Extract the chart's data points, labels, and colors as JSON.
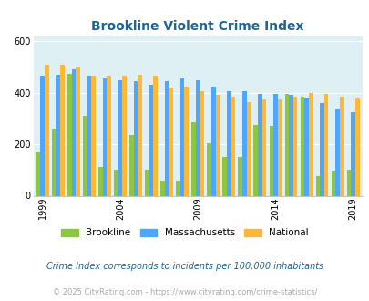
{
  "title": "Brookline Violent Crime Index",
  "years": [
    1999,
    2000,
    2001,
    2002,
    2003,
    2004,
    2005,
    2006,
    2007,
    2008,
    2009,
    2010,
    2011,
    2012,
    2013,
    2014,
    2015,
    2016,
    2017,
    2018,
    2019
  ],
  "brookline": [
    170,
    260,
    475,
    310,
    110,
    100,
    235,
    100,
    60,
    60,
    285,
    205,
    150,
    150,
    275,
    270,
    395,
    385,
    75,
    95,
    100
  ],
  "massachusetts": [
    465,
    470,
    490,
    465,
    455,
    450,
    445,
    430,
    445,
    455,
    450,
    425,
    405,
    405,
    395,
    395,
    390,
    380,
    360,
    340,
    325
  ],
  "national": [
    510,
    510,
    500,
    465,
    465,
    465,
    470,
    465,
    420,
    425,
    405,
    390,
    385,
    365,
    375,
    375,
    385,
    400,
    395,
    385,
    380
  ],
  "colors": {
    "brookline": "#8dc63f",
    "massachusetts": "#4da6ff",
    "national": "#ffb833",
    "background": "#dff0f5",
    "title": "#1a6699",
    "footer": "#aaaaaa",
    "note_text": "#1a6699"
  },
  "ylabel_ticks": [
    0,
    200,
    400,
    600
  ],
  "xlabel_ticks": [
    1999,
    2004,
    2009,
    2014,
    2019
  ],
  "subtitle": "Crime Index corresponds to incidents per 100,000 inhabitants",
  "footer": "© 2025 CityRating.com - https://www.cityrating.com/crime-statistics/"
}
